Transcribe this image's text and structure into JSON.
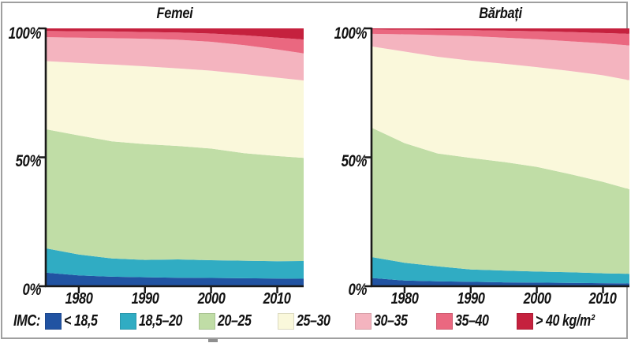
{
  "axes": {
    "y_labels": [
      "100%",
      "50%",
      "0%"
    ],
    "x_labels": [
      "1980",
      "1990",
      "2000",
      "2010"
    ]
  },
  "legend": {
    "label": "IMC:",
    "items": [
      {
        "label": "< 18,5",
        "color": "#2153a2"
      },
      {
        "label": "18,5–20",
        "color": "#30acc3"
      },
      {
        "label": "20–25",
        "color": "#c0dda6"
      },
      {
        "label": "25–30",
        "color": "#faf8db"
      },
      {
        "label": "30–35",
        "color": "#f4b4bf"
      },
      {
        "label": "35–40",
        "color": "#ea6880"
      },
      {
        "label": "> 40 kg/m²",
        "color": "#c5213e"
      }
    ]
  },
  "chart_data": [
    {
      "type": "area",
      "stacked": true,
      "title": "Femei",
      "x": [
        1975,
        1980,
        1985,
        1990,
        1995,
        2000,
        2005,
        2010,
        2014
      ],
      "x_range": [
        1975,
        2014
      ],
      "x_tick_years": [
        1980,
        1990,
        2000,
        2010
      ],
      "x_tick_labels": [
        "1980",
        "1990",
        "2000",
        "2010"
      ],
      "ylim": [
        0,
        100
      ],
      "y_tick_labels": [
        "0%",
        "50%",
        "100%"
      ],
      "grid": false,
      "legend_position": "bottom",
      "series": [
        {
          "name": "< 18,5",
          "color": "#2153a2",
          "values": [
            5.3,
            4.2,
            3.7,
            3.5,
            3.3,
            3.2,
            3.1,
            3.0,
            2.9
          ]
        },
        {
          "name": "18,5–20",
          "color": "#30acc3",
          "values": [
            9.4,
            8.1,
            7.1,
            6.7,
            7.1,
            6.9,
            6.8,
            6.7,
            6.9
          ]
        },
        {
          "name": "20–25",
          "color": "#c0dda6",
          "values": [
            46.2,
            46.2,
            45.4,
            44.9,
            44.0,
            43.3,
            41.7,
            40.8,
            40.0
          ]
        },
        {
          "name": "25–30",
          "color": "#faf8db",
          "values": [
            26.4,
            28.1,
            29.8,
            30.2,
            30.1,
            30.2,
            30.7,
            30.4,
            30.0
          ]
        },
        {
          "name": "30–35",
          "color": "#f4b4bf",
          "values": [
            9.3,
            9.8,
            10.2,
            10.7,
            11.1,
            11.2,
            11.2,
            10.9,
            10.5
          ]
        },
        {
          "name": "35–40",
          "color": "#ea6880",
          "values": [
            2.4,
            2.5,
            2.6,
            2.6,
            2.8,
            3.2,
            3.8,
            4.6,
            5.4
          ]
        },
        {
          "name": "> 40 kg/m²",
          "color": "#c5213e",
          "values": [
            1.0,
            1.1,
            1.2,
            1.4,
            1.6,
            2.0,
            2.7,
            3.6,
            4.3
          ]
        }
      ]
    },
    {
      "type": "area",
      "stacked": true,
      "title": "Bărbați",
      "x": [
        1975,
        1980,
        1985,
        1990,
        1995,
        2000,
        2005,
        2010,
        2014
      ],
      "x_range": [
        1975,
        2014
      ],
      "x_tick_years": [
        1980,
        1990,
        2000,
        2010
      ],
      "x_tick_labels": [
        "1980",
        "1990",
        "2000",
        "2010"
      ],
      "ylim": [
        0,
        100
      ],
      "y_tick_labels": [
        "0%",
        "50%",
        "100%"
      ],
      "grid": false,
      "legend_position": "bottom",
      "series": [
        {
          "name": "< 18,5",
          "color": "#2153a2",
          "values": [
            3.2,
            2.2,
            1.9,
            1.7,
            1.5,
            1.4,
            1.3,
            1.2,
            1.1
          ]
        },
        {
          "name": "18,5–20",
          "color": "#30acc3",
          "values": [
            8.1,
            6.9,
            5.8,
            4.8,
            4.6,
            4.3,
            4.1,
            3.8,
            3.7
          ]
        },
        {
          "name": "20–25",
          "color": "#c0dda6",
          "values": [
            50.2,
            46.4,
            43.8,
            43.3,
            42.1,
            40.6,
            38.1,
            35.5,
            32.8
          ]
        },
        {
          "name": "25–30",
          "color": "#faf8db",
          "values": [
            31.5,
            35.5,
            37.5,
            37.7,
            38.1,
            38.7,
            40.0,
            41.3,
            42.3
          ]
        },
        {
          "name": "30–35",
          "color": "#f4b4bf",
          "values": [
            4.9,
            6.7,
            8.4,
            9.5,
            10.1,
            10.8,
            11.5,
            12.4,
            13.5
          ]
        },
        {
          "name": "35–40",
          "color": "#ea6880",
          "values": [
            1.7,
            1.8,
            2.0,
            2.3,
            2.7,
            3.1,
            3.6,
            4.0,
            4.5
          ]
        },
        {
          "name": "> 40 kg/m²",
          "color": "#c5213e",
          "values": [
            0.4,
            0.5,
            0.6,
            0.7,
            0.9,
            1.1,
            1.4,
            1.8,
            2.1
          ]
        }
      ]
    }
  ]
}
